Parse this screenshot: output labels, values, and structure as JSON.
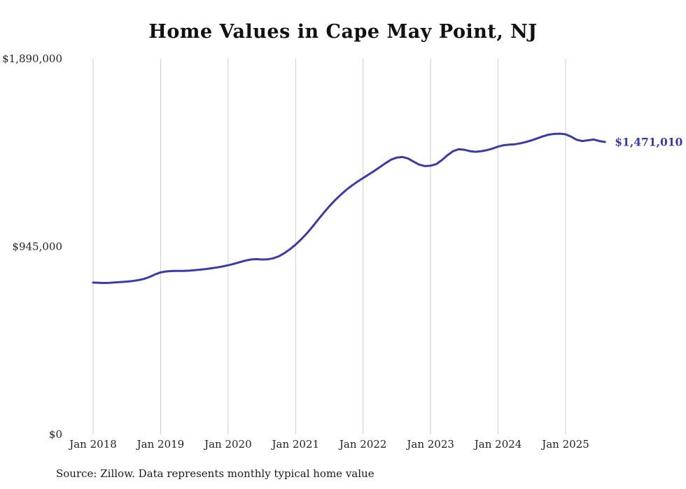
{
  "title": "Home Values in Cape May Point, NJ",
  "source_note": "Source: Zillow. Data represents monthly typical home value",
  "chart_data": {
    "type": "line",
    "title": "Home Values in Cape May Point, NJ",
    "series_name": "Monthly typical home value",
    "end_label": "$1,471,010",
    "latest_value": 1471010,
    "ylim": [
      0,
      1890000
    ],
    "grid": "vertical-only",
    "legend": "none",
    "line_color": "#3b3ba6",
    "label_color": "#3b3ba6",
    "grid_color": "#cccccc",
    "axis_text_color": "#222222",
    "y_ticks": [
      {
        "value": 1890000,
        "label": "$1,890,000"
      },
      {
        "value": 945000,
        "label": "$945,000"
      },
      {
        "value": 0,
        "label": "$0"
      }
    ],
    "x_ticks": [
      {
        "month_index": 0,
        "label": "Jan 2018"
      },
      {
        "month_index": 12,
        "label": "Jan 2019"
      },
      {
        "month_index": 24,
        "label": "Jan 2020"
      },
      {
        "month_index": 36,
        "label": "Jan 2021"
      },
      {
        "month_index": 48,
        "label": "Jan 2022"
      },
      {
        "month_index": 60,
        "label": "Jan 2023"
      },
      {
        "month_index": 72,
        "label": "Jan 2024"
      },
      {
        "month_index": 84,
        "label": "Jan 2025"
      }
    ],
    "x": [
      "2018-01",
      "2018-02",
      "2018-03",
      "2018-04",
      "2018-05",
      "2018-06",
      "2018-07",
      "2018-08",
      "2018-09",
      "2018-10",
      "2018-11",
      "2018-12",
      "2019-01",
      "2019-02",
      "2019-03",
      "2019-04",
      "2019-05",
      "2019-06",
      "2019-07",
      "2019-08",
      "2019-09",
      "2019-10",
      "2019-11",
      "2019-12",
      "2020-01",
      "2020-02",
      "2020-03",
      "2020-04",
      "2020-05",
      "2020-06",
      "2020-07",
      "2020-08",
      "2020-09",
      "2020-10",
      "2020-11",
      "2020-12",
      "2021-01",
      "2021-02",
      "2021-03",
      "2021-04",
      "2021-05",
      "2021-06",
      "2021-07",
      "2021-08",
      "2021-09",
      "2021-10",
      "2021-11",
      "2021-12",
      "2022-01",
      "2022-02",
      "2022-03",
      "2022-04",
      "2022-05",
      "2022-06",
      "2022-07",
      "2022-08",
      "2022-09",
      "2022-10",
      "2022-11",
      "2022-12",
      "2023-01",
      "2023-02",
      "2023-03",
      "2023-04",
      "2023-05",
      "2023-06",
      "2023-07",
      "2023-08",
      "2023-09",
      "2023-10",
      "2023-11",
      "2023-12",
      "2024-01",
      "2024-02",
      "2024-03",
      "2024-04",
      "2024-05",
      "2024-06",
      "2024-07",
      "2024-08",
      "2024-09",
      "2024-10",
      "2024-11",
      "2024-12",
      "2025-01",
      "2025-02",
      "2025-03",
      "2025-04",
      "2025-05",
      "2025-06",
      "2025-07",
      "2025-08"
    ],
    "values": [
      764000,
      763000,
      762000,
      763000,
      765000,
      767000,
      769000,
      772000,
      776000,
      782000,
      792000,
      805000,
      815000,
      820000,
      822000,
      823000,
      823000,
      824000,
      826000,
      829000,
      832000,
      836000,
      840000,
      845000,
      851000,
      858000,
      866000,
      874000,
      880000,
      882000,
      880000,
      881000,
      886000,
      896000,
      912000,
      932000,
      955000,
      982000,
      1012000,
      1045000,
      1080000,
      1115000,
      1148000,
      1178000,
      1205000,
      1230000,
      1252000,
      1272000,
      1290000,
      1308000,
      1326000,
      1345000,
      1365000,
      1383000,
      1393000,
      1396000,
      1388000,
      1372000,
      1357000,
      1350000,
      1352000,
      1360000,
      1380000,
      1405000,
      1425000,
      1435000,
      1432000,
      1425000,
      1422000,
      1425000,
      1430000,
      1438000,
      1448000,
      1455000,
      1458000,
      1460000,
      1465000,
      1472000,
      1480000,
      1490000,
      1500000,
      1508000,
      1512000,
      1513000,
      1510000,
      1498000,
      1482000,
      1476000,
      1480000,
      1484000,
      1476000,
      1471010
    ]
  }
}
